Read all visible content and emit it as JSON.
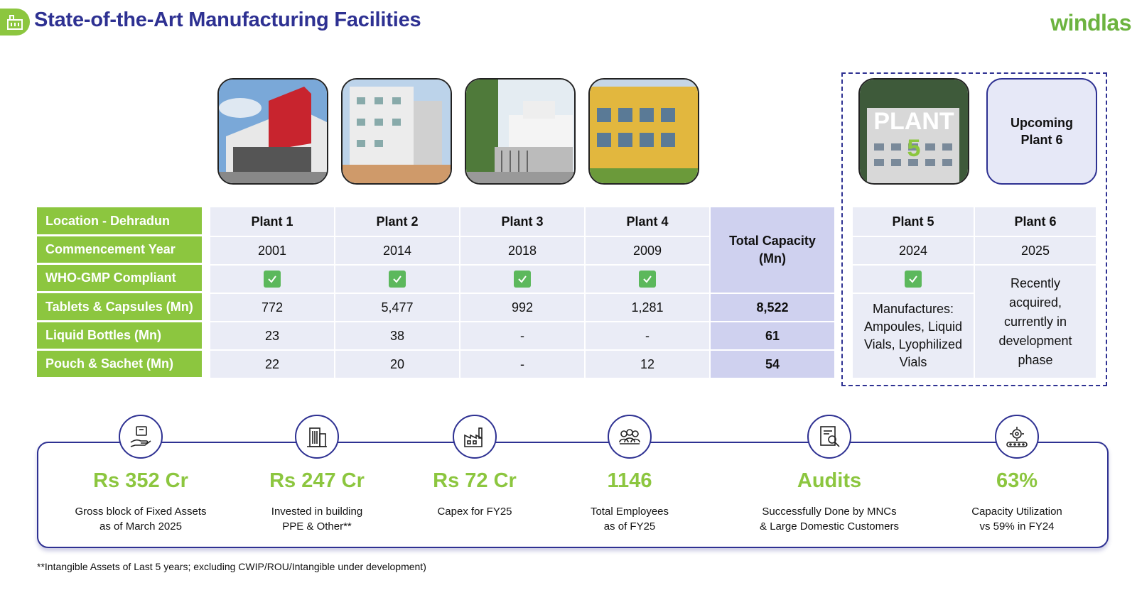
{
  "header": {
    "title": "State-of-the-Art Manufacturing Facilities",
    "logo": "windlas"
  },
  "upcoming_card": {
    "line1": "Upcoming",
    "line2": "Plant 6"
  },
  "plant5_photo_text": {
    "line1": "PLANT",
    "line2": "5"
  },
  "row_labels": [
    "Location - Dehradun",
    "Commencement Year",
    "WHO-GMP Compliant",
    "Tablets & Capsules (Mn)",
    "Liquid Bottles  (Mn)",
    "Pouch & Sachet (Mn)"
  ],
  "plants": [
    {
      "name": "Plant 1",
      "year": "2001",
      "tablets": "772",
      "liquid": "23",
      "pouch": "22"
    },
    {
      "name": "Plant 2",
      "year": "2014",
      "tablets": "5,477",
      "liquid": "38",
      "pouch": "20"
    },
    {
      "name": "Plant 3",
      "year": "2018",
      "tablets": "992",
      "liquid": "-",
      "pouch": "-"
    },
    {
      "name": "Plant 4",
      "year": "2009",
      "tablets": "1,281",
      "liquid": "-",
      "pouch": "12"
    }
  ],
  "total": {
    "header_line1": "Total Capacity",
    "header_line2": "(Mn)",
    "tablets": "8,522",
    "liquid": "61",
    "pouch": "54"
  },
  "plant5": {
    "name": "Plant 5",
    "year": "2024",
    "desc": [
      "Manufactures:",
      "Ampoules, Liquid",
      "Vials, Lyophilized",
      "Vials"
    ]
  },
  "plant6": {
    "name": "Plant 6",
    "year": "2025",
    "desc": [
      "Recently",
      "acquired,",
      "currently in",
      "development",
      "phase"
    ]
  },
  "stats": [
    {
      "value": "Rs 352 Cr",
      "line1": "Gross block of Fixed Assets",
      "line2": "as of March 2025",
      "icon": "hand-money-icon"
    },
    {
      "value": "Rs 247 Cr",
      "line1": "Invested in building",
      "line2": "PPE & Other**",
      "icon": "building-icon"
    },
    {
      "value": "Rs 72 Cr",
      "line1": "Capex for FY25",
      "line2": "",
      "icon": "factory-icon"
    },
    {
      "value": "1146",
      "line1": "Total Employees",
      "line2": "as of FY25",
      "icon": "people-icon"
    },
    {
      "value": "Audits",
      "line1": "Successfully Done by MNCs",
      "line2": "& Large Domestic Customers",
      "icon": "audit-icon"
    },
    {
      "value": "63%",
      "line1": "Capacity Utilization",
      "line2": "vs 59% in FY24",
      "icon": "gear-conveyor-icon"
    }
  ],
  "footnote": "**Intangible Assets of Last 5 years; excluding CWIP/ROU/Intangible under development)",
  "colors": {
    "navy": "#2e3192",
    "green": "#8cc63f",
    "check": "#5cb85c",
    "cell": "#eaecf6",
    "total": "#cfd1ef"
  }
}
